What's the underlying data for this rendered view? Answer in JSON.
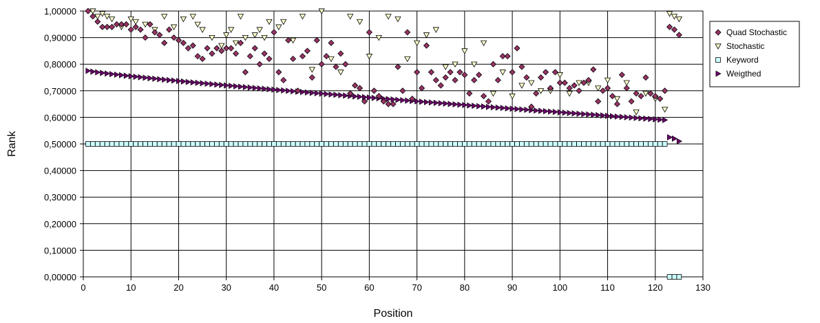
{
  "chart_data": {
    "type": "scatter",
    "title": "",
    "xlabel": "Position",
    "ylabel": "Rank",
    "xlim": [
      0,
      130
    ],
    "ylim": [
      0,
      1
    ],
    "x_ticks": [
      "0",
      "10",
      "20",
      "30",
      "40",
      "50",
      "60",
      "70",
      "80",
      "90",
      "100",
      "110",
      "120",
      "130"
    ],
    "y_ticks": [
      "0,00000",
      "0,10000",
      "0,20000",
      "0,30000",
      "0,40000",
      "0,50000",
      "0,60000",
      "0,70000",
      "0,80000",
      "0,90000",
      "1,00000"
    ],
    "grid": true,
    "legend_position": "right",
    "series": [
      {
        "name": "Quad Stochastic",
        "marker": "diamond",
        "color": "#993366",
        "x": [
          1,
          2,
          3,
          4,
          5,
          6,
          7,
          8,
          9,
          10,
          11,
          12,
          13,
          14,
          15,
          16,
          17,
          18,
          19,
          20,
          21,
          22,
          23,
          24,
          25,
          26,
          27,
          28,
          29,
          30,
          31,
          32,
          33,
          34,
          35,
          36,
          37,
          38,
          39,
          40,
          41,
          42,
          43,
          44,
          45,
          46,
          47,
          48,
          49,
          50,
          51,
          52,
          53,
          54,
          55,
          56,
          57,
          58,
          59,
          60,
          61,
          62,
          63,
          64,
          65,
          66,
          67,
          68,
          69,
          70,
          71,
          72,
          73,
          74,
          75,
          76,
          77,
          78,
          79,
          80,
          81,
          82,
          83,
          84,
          85,
          86,
          87,
          88,
          89,
          90,
          91,
          92,
          93,
          94,
          95,
          96,
          97,
          98,
          99,
          100,
          101,
          102,
          103,
          104,
          105,
          106,
          107,
          108,
          109,
          110,
          111,
          112,
          113,
          114,
          115,
          116,
          117,
          118,
          119,
          120,
          121,
          122,
          123,
          124,
          125
        ],
        "y": [
          1.0,
          0.98,
          0.96,
          0.94,
          0.94,
          0.94,
          0.95,
          0.95,
          0.95,
          0.93,
          0.94,
          0.93,
          0.9,
          0.95,
          0.92,
          0.91,
          0.88,
          0.93,
          0.9,
          0.89,
          0.88,
          0.86,
          0.87,
          0.83,
          0.82,
          0.86,
          0.84,
          0.86,
          0.85,
          0.86,
          0.86,
          0.84,
          0.88,
          0.77,
          0.83,
          0.86,
          0.8,
          0.84,
          0.82,
          0.92,
          0.77,
          0.74,
          0.89,
          0.82,
          0.7,
          0.83,
          0.85,
          0.75,
          0.89,
          0.8,
          0.83,
          0.88,
          0.79,
          0.84,
          0.8,
          0.69,
          0.72,
          0.71,
          0.66,
          0.92,
          0.7,
          0.68,
          0.66,
          0.65,
          0.65,
          0.79,
          0.7,
          0.92,
          0.67,
          0.77,
          0.71,
          0.87,
          0.77,
          0.74,
          0.72,
          0.75,
          0.77,
          0.74,
          0.77,
          0.76,
          0.69,
          0.74,
          0.76,
          0.68,
          0.66,
          0.8,
          0.74,
          0.83,
          0.83,
          0.77,
          0.86,
          0.79,
          0.75,
          0.64,
          0.69,
          0.75,
          0.77,
          0.71,
          0.77,
          0.73,
          0.73,
          0.71,
          0.72,
          0.7,
          0.73,
          0.74,
          0.78,
          0.66,
          0.7,
          0.71,
          0.68,
          0.65,
          0.76,
          0.71,
          0.66,
          0.69,
          0.68,
          0.75,
          0.69,
          0.68,
          0.67,
          0.7,
          0.94,
          0.93,
          0.91
        ]
      },
      {
        "name": "Stochastic",
        "marker": "triangle-down",
        "color": "#ffffcc",
        "x": [
          2,
          3,
          4,
          5,
          6,
          8,
          10,
          11,
          13,
          15,
          17,
          19,
          21,
          23,
          24,
          25,
          27,
          29,
          30,
          31,
          32,
          33,
          34,
          36,
          37,
          38,
          39,
          41,
          42,
          44,
          46,
          48,
          50,
          52,
          54,
          56,
          58,
          60,
          62,
          64,
          66,
          68,
          70,
          72,
          74,
          76,
          78,
          80,
          82,
          84,
          86,
          88,
          90,
          92,
          94,
          96,
          98,
          100,
          102,
          104,
          106,
          108,
          110,
          112,
          114,
          116,
          118,
          120,
          122,
          123,
          124,
          125
        ],
        "y": [
          1.0,
          0.98,
          0.99,
          0.98,
          0.97,
          0.94,
          0.97,
          0.96,
          0.95,
          0.93,
          0.98,
          0.94,
          0.97,
          0.98,
          0.95,
          0.93,
          0.9,
          0.87,
          0.91,
          0.93,
          0.88,
          0.98,
          0.9,
          0.91,
          0.93,
          0.9,
          0.96,
          0.94,
          0.96,
          0.89,
          0.98,
          0.78,
          1.0,
          0.82,
          0.77,
          0.98,
          0.96,
          0.83,
          0.9,
          0.98,
          0.97,
          0.82,
          0.88,
          0.91,
          0.93,
          0.79,
          0.8,
          0.85,
          0.8,
          0.88,
          0.69,
          0.77,
          0.68,
          0.72,
          0.73,
          0.7,
          0.7,
          0.76,
          0.69,
          0.73,
          0.73,
          0.71,
          0.74,
          0.67,
          0.73,
          0.62,
          0.69,
          0.67,
          0.63,
          0.99,
          0.98,
          0.97
        ]
      },
      {
        "name": "Keyword",
        "marker": "square",
        "color": "#ccffff",
        "y_const": 0.5,
        "x_from": 1,
        "x_to": 122,
        "tail_x": [
          123,
          124,
          125
        ],
        "tail_y": [
          0.0,
          0.0,
          0.0
        ]
      },
      {
        "name": "Weigthed",
        "marker": "triangle-right",
        "color": "#660066",
        "x_from": 1,
        "x_to": 122,
        "y_start": 0.775,
        "y_end": 0.59,
        "tail_x": [
          123,
          124,
          125
        ],
        "tail_y": [
          0.525,
          0.52,
          0.51
        ]
      }
    ]
  }
}
